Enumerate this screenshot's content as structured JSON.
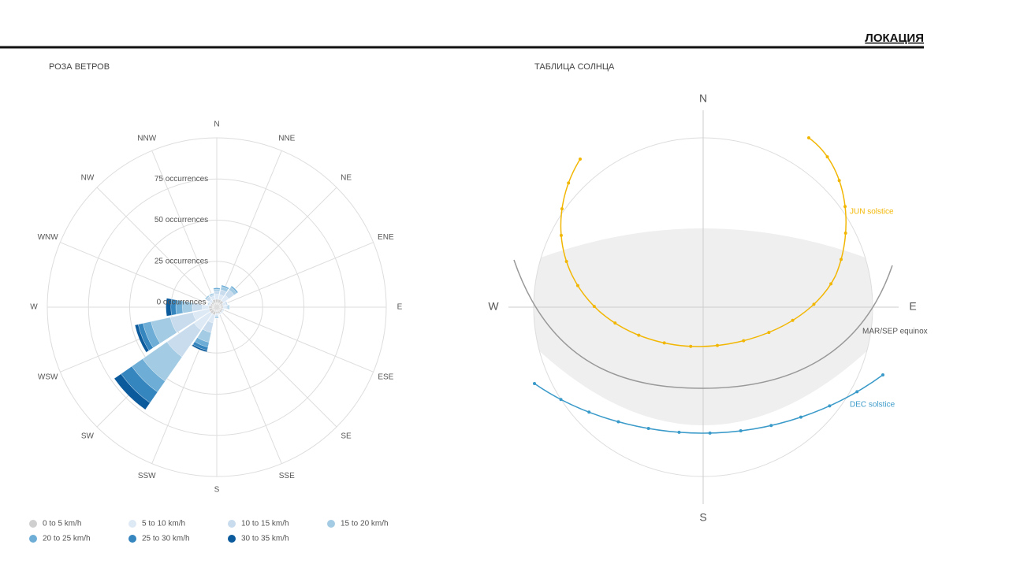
{
  "header": {
    "title": "ЛОКАЦИЯ"
  },
  "chart_data": {
    "type": "polar_bar",
    "title": "РОЗА ВЕТРОВ",
    "categories": [
      "N",
      "NNE",
      "NE",
      "ENE",
      "E",
      "ESE",
      "SE",
      "SSE",
      "S",
      "SSW",
      "SW",
      "WSW",
      "W",
      "WNW",
      "NW",
      "NNW"
    ],
    "series": [
      {
        "name": "0 to 5 km/h",
        "color": "#cfcfcf",
        "values": [
          2,
          2,
          2,
          1,
          1,
          1,
          1,
          1,
          1,
          2,
          2,
          2,
          2,
          1,
          1,
          2
        ]
      },
      {
        "name": "5 to 10 km/h",
        "color": "#dde9f5",
        "values": [
          3,
          3,
          4,
          2,
          2,
          1,
          1,
          1,
          1,
          5,
          12,
          10,
          4,
          1,
          2,
          2
        ]
      },
      {
        "name": "10 to 15 km/h",
        "color": "#c8dcee",
        "values": [
          2,
          3,
          4,
          1,
          1,
          0,
          0,
          0,
          1,
          6,
          20,
          14,
          6,
          1,
          2,
          1
        ]
      },
      {
        "name": "15 to 20 km/h",
        "color": "#a3cbe3",
        "values": [
          1,
          2,
          2,
          0,
          1,
          0,
          0,
          0,
          1,
          6,
          18,
          12,
          6,
          0,
          1,
          1
        ]
      },
      {
        "name": "20 to 25 km/h",
        "color": "#6eaed6",
        "values": [
          1,
          1,
          1,
          0,
          0,
          0,
          0,
          0,
          0,
          3,
          8,
          5,
          4,
          0,
          0,
          0
        ]
      },
      {
        "name": "25 to 30 km/h",
        "color": "#3585bf",
        "values": [
          0,
          0,
          0,
          0,
          0,
          0,
          0,
          0,
          0,
          2,
          8,
          3,
          3,
          0,
          0,
          0
        ]
      },
      {
        "name": "30 to 35 km/h",
        "color": "#0b5a9c",
        "values": [
          0,
          0,
          0,
          0,
          0,
          0,
          0,
          0,
          0,
          1,
          5,
          2,
          3,
          0,
          0,
          0
        ]
      }
    ],
    "rlim": [
      0,
      100
    ],
    "rticks": [
      {
        "value": 0,
        "label": "0 occurrences"
      },
      {
        "value": 25,
        "label": "25 occurrences"
      },
      {
        "value": 50,
        "label": "50 occurrences"
      },
      {
        "value": 75,
        "label": "75 occurrences"
      }
    ],
    "grid": true
  },
  "sun_chart": {
    "title": "ТАБЛИЦА СОЛНЦА",
    "directions": {
      "north": "N",
      "east": "E",
      "south": "S",
      "west": "W"
    },
    "curves": [
      {
        "label": "JUN solstice",
        "color": "#f2b705"
      },
      {
        "label": "MAR/SEP equinox",
        "color": "#999999"
      },
      {
        "label": "DEC solstice",
        "color": "#3a9ac9"
      }
    ]
  }
}
